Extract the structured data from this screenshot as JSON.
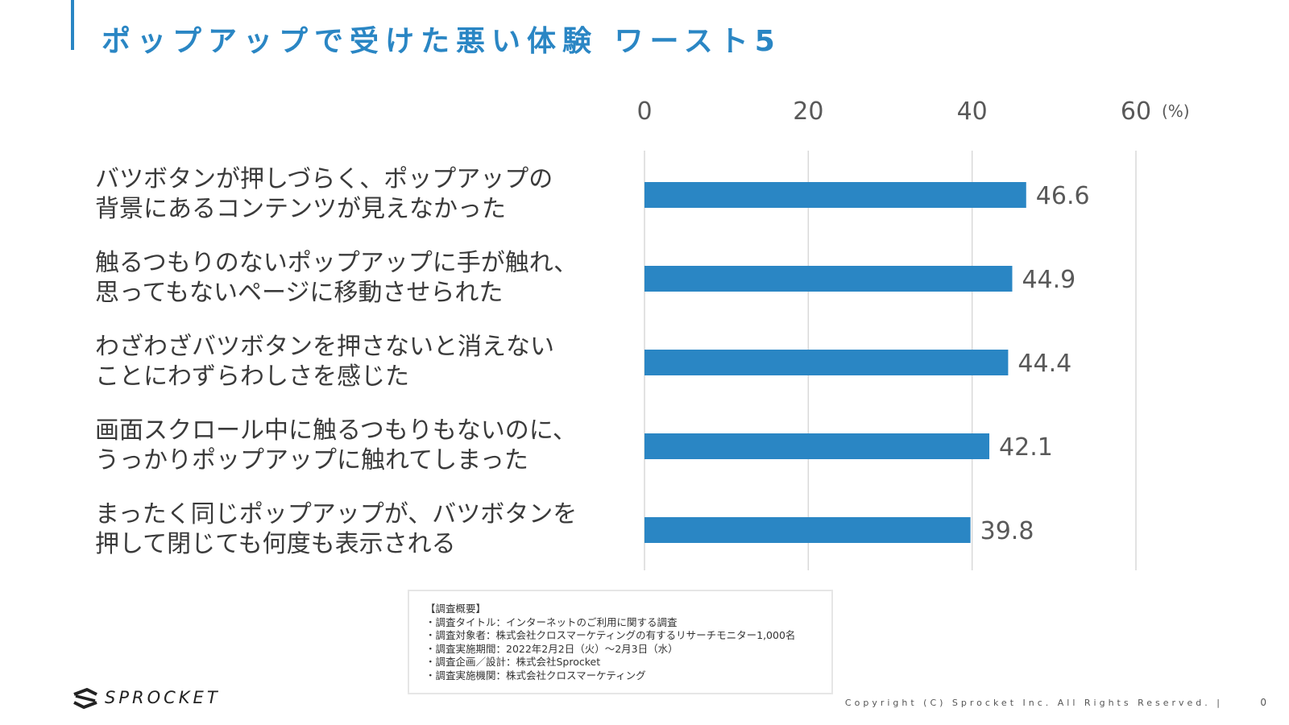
{
  "header": {
    "title": "ポップアップで受けた悪い体験 ワースト5"
  },
  "chart_data": {
    "type": "bar",
    "orientation": "horizontal",
    "categories": [
      "バツボタンが押しづらく、ポップアップの\n背景にあるコンテンツが見えなかった",
      "触るつもりのないポップアップに手が触れ、\n思ってもないページに移動させられた",
      "わざわざバツボタンを押さないと消えない\nことにわずらわしさを感じた",
      "画面スクロール中に触るつもりもないのに、\nうっかりポップアップに触れてしまった",
      "まったく同じポップアップが、バツボタンを\n押して閉じても何度も表示される"
    ],
    "values": [
      46.6,
      44.9,
      44.4,
      42.1,
      39.8
    ],
    "value_labels": [
      "46.6",
      "44.9",
      "44.4",
      "42.1",
      "39.8"
    ],
    "xlim": [
      0,
      60
    ],
    "x_ticks": [
      0,
      20,
      40,
      60
    ],
    "x_tick_labels": [
      "0",
      "20",
      "40",
      "60"
    ],
    "unit_label": "(%)",
    "axis_position": "top",
    "grid": true,
    "bar_color": "#2a86c4",
    "grid_color": "#d9d9d9"
  },
  "survey": {
    "lines": [
      "【調査概要】",
      "・調査タイトル：インターネットのご利用に関する調査",
      "・調査対象者：株式会社クロスマーケティングの有するリサーチモニター1,000名",
      "・調査実施期間：2022年2月2日（火）～2月3日（水）",
      "・調査企画／設計：株式会社Sprocket",
      "・調査実施機関：株式会社クロスマーケティング"
    ]
  },
  "footer": {
    "logo_text": "SPROCKET",
    "copyright": "Copyright (C) Sprocket Inc. All Rights Reserved. |",
    "page_number": "0"
  },
  "colors": {
    "accent": "#2a86c4",
    "text": "#333333"
  }
}
